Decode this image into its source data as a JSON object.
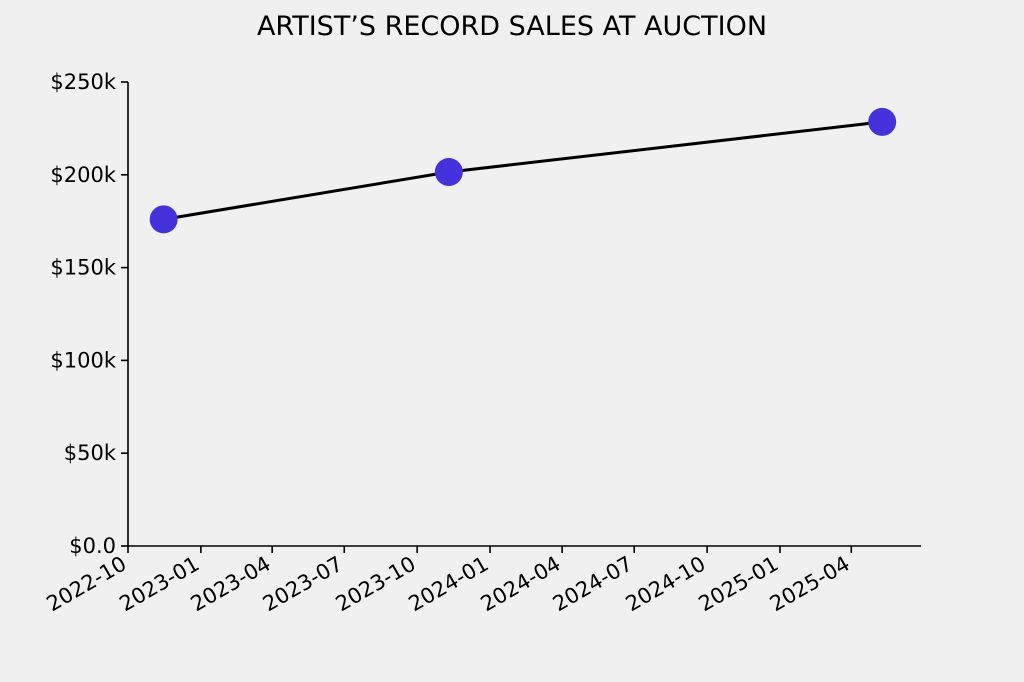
{
  "chart_data": {
    "type": "line",
    "title": "ARTIST’S RECORD SALES AT AUCTION",
    "xlabel": "",
    "ylabel": "",
    "x_axis_type": "date",
    "xlim": [
      "2022-10-01",
      "2025-06-28"
    ],
    "ylim": [
      0,
      250000
    ],
    "y_ticks": [
      {
        "value": 0,
        "label": "$0.0"
      },
      {
        "value": 50000,
        "label": "$50k"
      },
      {
        "value": 100000,
        "label": "$100k"
      },
      {
        "value": 150000,
        "label": "$150k"
      },
      {
        "value": 200000,
        "label": "$200k"
      },
      {
        "value": 250000,
        "label": "$250k"
      }
    ],
    "x_ticks": [
      {
        "value": "2022-10-01",
        "label": "2022-10"
      },
      {
        "value": "2023-01-01",
        "label": "2023-01"
      },
      {
        "value": "2023-04-01",
        "label": "2023-04"
      },
      {
        "value": "2023-07-01",
        "label": "2023-07"
      },
      {
        "value": "2023-10-01",
        "label": "2023-10"
      },
      {
        "value": "2024-01-01",
        "label": "2024-01"
      },
      {
        "value": "2024-04-01",
        "label": "2024-04"
      },
      {
        "value": "2024-07-01",
        "label": "2024-07"
      },
      {
        "value": "2024-10-01",
        "label": "2024-10"
      },
      {
        "value": "2025-01-01",
        "label": "2025-01"
      },
      {
        "value": "2025-04-01",
        "label": "2025-04"
      }
    ],
    "grid": false,
    "legend": "none",
    "series": [
      {
        "line_color": "#000000",
        "marker_color": "#4433dd",
        "points": [
          {
            "x": "2022-11-15",
            "y": 176000
          },
          {
            "x": "2023-11-10",
            "y": 201500
          },
          {
            "x": "2025-05-10",
            "y": 228500
          }
        ]
      }
    ]
  }
}
